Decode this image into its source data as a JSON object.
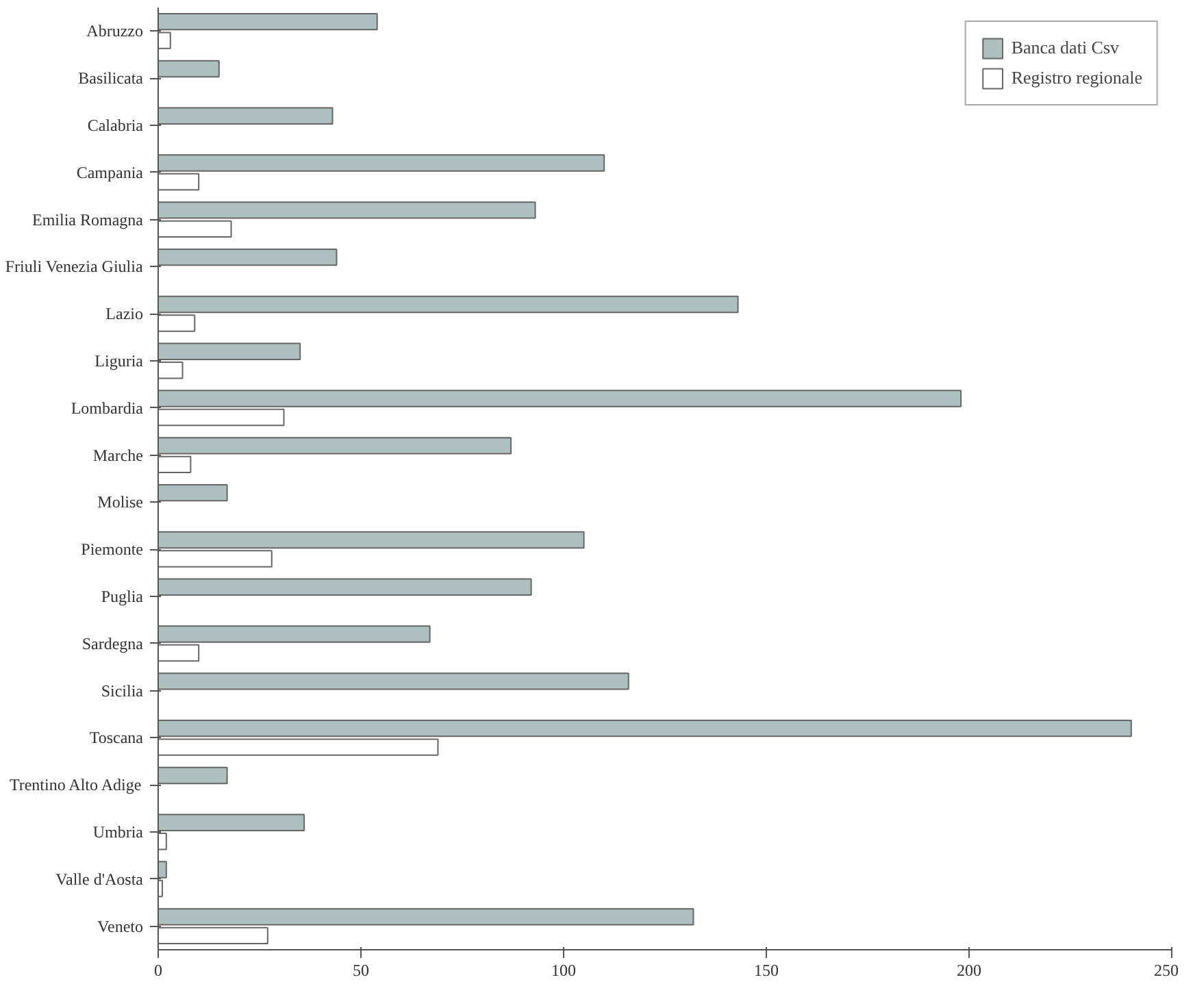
{
  "chart_data": {
    "type": "bar",
    "orientation": "horizontal",
    "categories": [
      "Abruzzo",
      "Basilicata",
      "Calabria",
      "Campania",
      "Emilia Romagna",
      "Friuli Venezia Giulia",
      "Lazio",
      "Liguria",
      "Lombardia",
      "Marche",
      "Molise",
      "Piemonte",
      "Puglia",
      "Sardegna",
      "Sicilia",
      "Toscana",
      "Trentino Alto Adige",
      "Umbria",
      "Valle d'Aosta",
      "Veneto"
    ],
    "series": [
      {
        "name": "Banca dati Csv",
        "color": "#aebfc0",
        "values": [
          54,
          15,
          43,
          110,
          93,
          44,
          143,
          35,
          198,
          87,
          17,
          105,
          92,
          67,
          116,
          240,
          17,
          36,
          2,
          132
        ]
      },
      {
        "name": "Registro regionale",
        "color": "#ffffff",
        "values": [
          3,
          null,
          null,
          10,
          18,
          null,
          9,
          6,
          31,
          8,
          null,
          28,
          null,
          10,
          null,
          69,
          null,
          2,
          1,
          27
        ]
      }
    ],
    "xlim": [
      0,
      250
    ],
    "xticks": [
      0,
      50,
      100,
      150,
      200,
      250
    ],
    "grid": false,
    "legend": "top right"
  }
}
